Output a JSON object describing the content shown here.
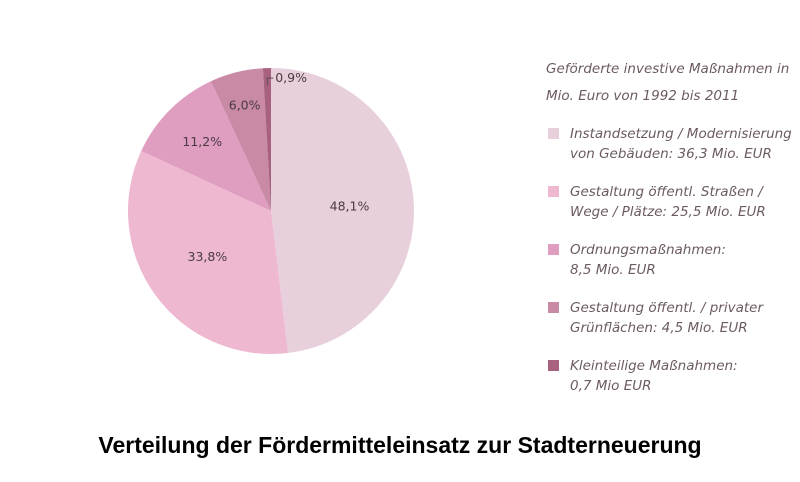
{
  "chart_data": {
    "type": "pie",
    "legend_title": "Geförderte investive Maßnahmen in\nMio. Euro von 1992 bis 2011",
    "caption": "Verteilung der Fördermitteleinsatz zur Stadterneuerung",
    "slices": [
      {
        "label": "48,1%",
        "legend": "Instandsetzung / Modernisierung\nvon Gebäuden: 36,3 Mio. EUR",
        "value": 36.3,
        "percent": 48.1,
        "color": "#e8cfdc"
      },
      {
        "label": "33,8%",
        "legend": "Gestaltung öffentl. Straßen /\nWege / Plätze: 25,5 Mio. EUR",
        "value": 25.5,
        "percent": 33.8,
        "color": "#eeb8d0"
      },
      {
        "label": "11,2%",
        "legend": "Ordnungsmaßnahmen:\n8,5 Mio. EUR",
        "value": 8.5,
        "percent": 11.2,
        "color": "#df9dc0"
      },
      {
        "label": "6,0%",
        "legend": "Gestaltung öffentl. / privater\nGrünflächen: 4,5 Mio. EUR",
        "value": 4.5,
        "percent": 6.0,
        "color": "#c98aa6"
      },
      {
        "label": "0,9%",
        "legend": "Kleinteilige Maßnahmen:\n0,7 Mio EUR",
        "value": 0.7,
        "percent": 0.9,
        "color": "#a8627f"
      }
    ]
  }
}
